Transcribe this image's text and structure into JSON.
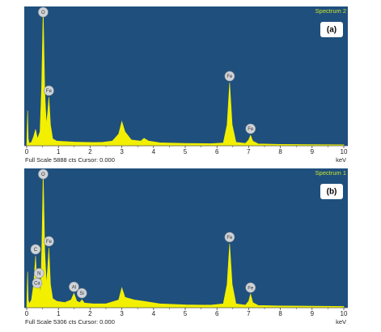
{
  "chart_data": [
    {
      "type": "area",
      "title": "Spectrum 2",
      "label": "(a)",
      "color": "#f2f000",
      "background": "#1f4f7d",
      "x": [
        0,
        0.03,
        0.05,
        0.08,
        0.15,
        0.22,
        0.28,
        0.34,
        0.42,
        0.47,
        0.52,
        0.57,
        0.62,
        0.66,
        0.7,
        0.75,
        0.82,
        0.95,
        1.2,
        1.5,
        1.8,
        2.1,
        2.4,
        2.7,
        2.9,
        3.0,
        3.1,
        3.3,
        3.6,
        3.7,
        3.85,
        4.2,
        5.0,
        5.8,
        6.2,
        6.32,
        6.4,
        6.48,
        6.6,
        6.9,
        7.0,
        7.06,
        7.13,
        7.3,
        8.0,
        9.0,
        10.0
      ],
      "values": [
        0,
        1500,
        300,
        100,
        150,
        400,
        700,
        300,
        600,
        2500,
        5888,
        2300,
        900,
        1400,
        2080,
        900,
        300,
        200,
        180,
        160,
        150,
        140,
        150,
        200,
        500,
        1040,
        600,
        250,
        200,
        320,
        200,
        130,
        100,
        90,
        120,
        900,
        2700,
        900,
        150,
        100,
        250,
        450,
        200,
        80,
        60,
        50,
        40
      ],
      "xlim": [
        0,
        10
      ],
      "xticks": [
        0,
        1,
        2,
        3,
        4,
        5,
        6,
        7,
        8,
        9,
        10
      ],
      "xlabel": "keV",
      "ylim": [
        0,
        5888
      ],
      "footer": "Full Scale 5888 cts Cursor: 0.000",
      "peaks": [
        {
          "label": "O",
          "x": 0.52
        },
        {
          "label": "Fe",
          "x": 0.7
        },
        {
          "label": "Fe",
          "x": 6.4
        },
        {
          "label": "Fe",
          "x": 7.06
        }
      ]
    },
    {
      "type": "area",
      "title": "Spectrum 1",
      "label": "(b)",
      "color": "#f2f000",
      "background": "#1f4f7d",
      "x": [
        0,
        0.03,
        0.05,
        0.08,
        0.15,
        0.22,
        0.28,
        0.33,
        0.39,
        0.44,
        0.48,
        0.52,
        0.57,
        0.62,
        0.66,
        0.7,
        0.75,
        0.82,
        0.95,
        1.2,
        1.4,
        1.49,
        1.58,
        1.68,
        1.74,
        1.82,
        2.1,
        2.5,
        2.9,
        3.0,
        3.1,
        3.4,
        3.7,
        4.2,
        5.0,
        5.8,
        6.2,
        6.32,
        6.4,
        6.48,
        6.6,
        6.9,
        7.0,
        7.06,
        7.13,
        7.3,
        8.0,
        9.0,
        10.0
      ],
      "values": [
        0,
        1390,
        300,
        150,
        300,
        900,
        2000,
        700,
        1080,
        500,
        2500,
        5306,
        2200,
        900,
        1500,
        2310,
        900,
        350,
        250,
        200,
        300,
        555,
        250,
        200,
        310,
        180,
        150,
        150,
        300,
        770,
        400,
        300,
        250,
        150,
        110,
        100,
        150,
        900,
        2470,
        900,
        150,
        100,
        250,
        525,
        200,
        90,
        70,
        60,
        50
      ],
      "xlim": [
        0,
        10
      ],
      "xticks": [
        0,
        1,
        2,
        3,
        4,
        5,
        6,
        7,
        8,
        9,
        10
      ],
      "xlabel": "keV",
      "ylim": [
        0,
        5306
      ],
      "footer": "Full Scale 5306 cts Cursor: 0.000",
      "peaks": [
        {
          "label": "O",
          "x": 0.52
        },
        {
          "label": "C",
          "x": 0.28
        },
        {
          "label": "Ca",
          "x": 0.33
        },
        {
          "label": "Fe",
          "x": 0.7
        },
        {
          "label": "N",
          "x": 0.39
        },
        {
          "label": "Al",
          "x": 1.49
        },
        {
          "label": "Si",
          "x": 1.74
        },
        {
          "label": "Fe",
          "x": 6.4
        },
        {
          "label": "Fe",
          "x": 7.06
        }
      ]
    }
  ]
}
